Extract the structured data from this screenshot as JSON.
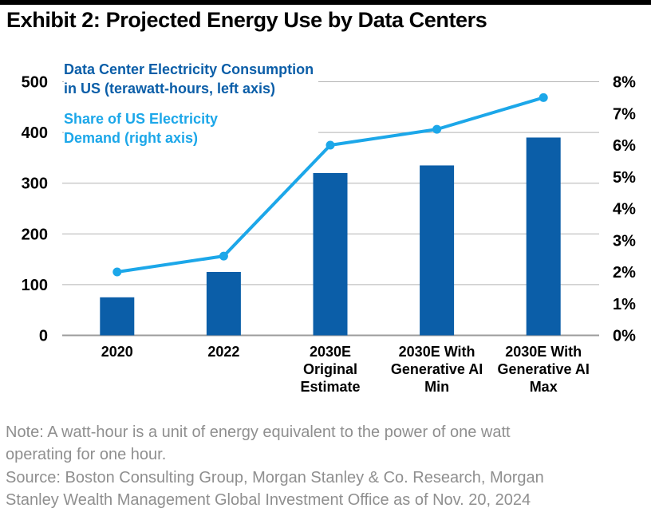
{
  "header": {
    "title": "Exhibit 2: Projected Energy Use by Data Centers"
  },
  "legend": {
    "bars_label": "Data Center Electricity Consumption\nin US (terawatt-hours, left axis)",
    "line_label": "Share of US Electricity\nDemand (right axis)"
  },
  "chart_data": {
    "type": "bar+line",
    "title": "Exhibit 2: Projected Energy Use by Data Centers",
    "categories": [
      "2020",
      "2022",
      "2030E\nOriginal\nEstimate",
      "2030E With\nGenerative AI\nMin",
      "2030E With\nGenerative AI\nMax"
    ],
    "series": [
      {
        "name": "Data Center Electricity Consumption in US (terawatt-hours, left axis)",
        "type": "bar",
        "axis": "left",
        "color": "#0B5EA8",
        "values": [
          75,
          125,
          320,
          335,
          390
        ]
      },
      {
        "name": "Share of US Electricity Demand (right axis)",
        "type": "line",
        "axis": "right",
        "color": "#1CA7E9",
        "values": [
          2.0,
          2.5,
          6.0,
          6.5,
          7.5
        ]
      }
    ],
    "left_axis": {
      "min": 0,
      "max": 500,
      "tick_step": 100,
      "ticks": [
        "0",
        "100",
        "200",
        "300",
        "400",
        "500"
      ]
    },
    "right_axis": {
      "min": 0,
      "max": 8,
      "tick_step": 1,
      "ticks": [
        "0%",
        "1%",
        "2%",
        "3%",
        "4%",
        "5%",
        "6%",
        "7%",
        "8%"
      ]
    },
    "grid": true,
    "legend_position": "top-left",
    "colors": {
      "gridline": "#B3B3B3",
      "axis_line": "#9C9C9C",
      "title": "#000000",
      "footnote": "#8F8F8F"
    }
  },
  "footer": {
    "note": "Note: A watt-hour is a unit of energy equivalent to the power of one watt\noperating for one hour.",
    "source": "Source: Boston Consulting Group, Morgan Stanley & Co. Research, Morgan\nStanley Wealth Management Global Investment Office as of Nov. 20, 2024"
  }
}
